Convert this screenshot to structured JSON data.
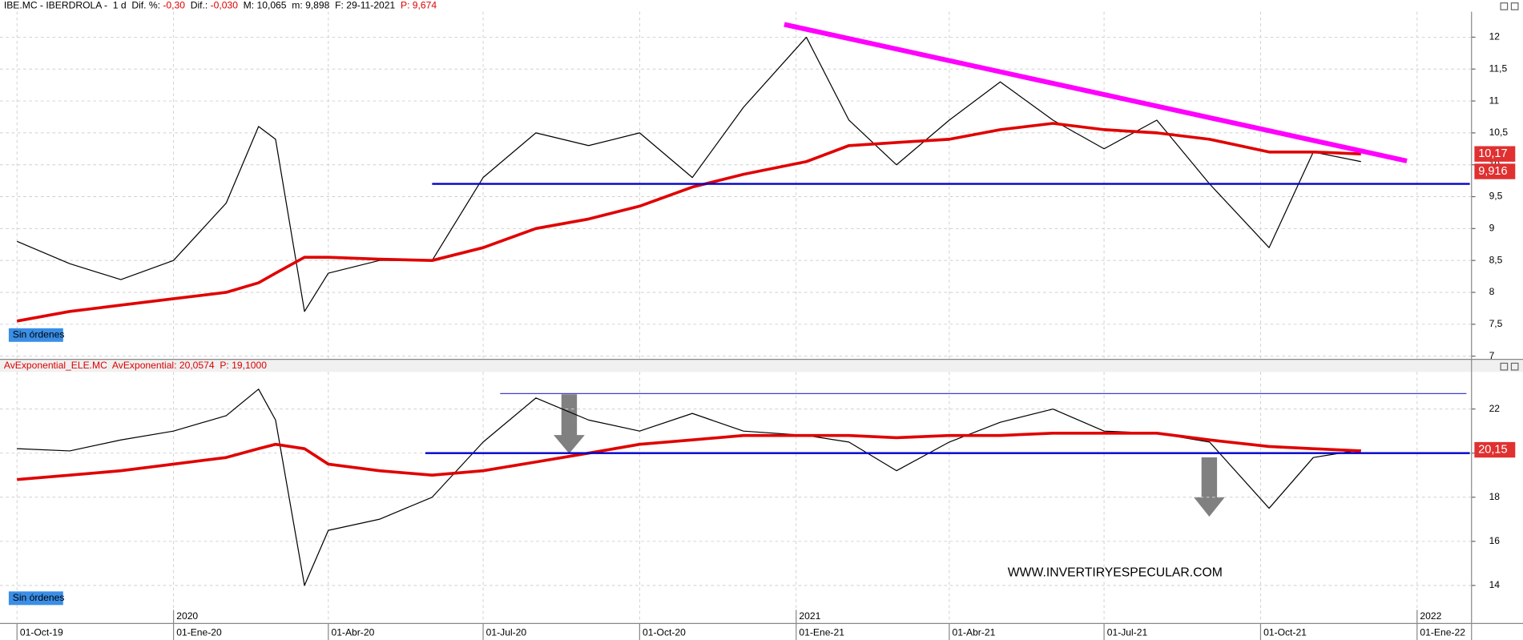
{
  "chart_data": [
    {
      "type": "line",
      "header": [
        {
          "text": "IBE.MC - IBERDROLA -  1 d  Dif. %: ",
          "color": "#000000"
        },
        {
          "text": "-0,30",
          "color": "#e00000"
        },
        {
          "text": "  Dif.: ",
          "color": "#000000"
        },
        {
          "text": "-0,030",
          "color": "#e00000"
        },
        {
          "text": "  M: 10,065  m: 9,898  F: 29-11-2021  ",
          "color": "#000000"
        },
        {
          "text": "P: 9,674",
          "color": "#e00000"
        }
      ],
      "status": "Sin órdenes",
      "x": [
        "2019-10-01",
        "2019-11-01",
        "2019-12-01",
        "2020-01-01",
        "2020-02-01",
        "2020-02-20",
        "2020-03-01",
        "2020-03-18",
        "2020-04-01",
        "2020-05-01",
        "2020-06-01",
        "2020-07-01",
        "2020-08-01",
        "2020-09-01",
        "2020-10-01",
        "2020-11-01",
        "2020-12-01",
        "2021-01-07",
        "2021-02-01",
        "2021-03-01",
        "2021-04-01",
        "2021-05-01",
        "2021-06-01",
        "2021-07-01",
        "2021-08-01",
        "2021-09-01",
        "2021-10-06",
        "2021-11-01",
        "2021-11-29"
      ],
      "series": [
        {
          "color": "#000000",
          "width": 1,
          "values": [
            8.8,
            8.45,
            8.2,
            8.5,
            9.4,
            10.6,
            10.4,
            7.7,
            8.3,
            8.5,
            8.5,
            9.8,
            10.5,
            10.3,
            10.5,
            9.8,
            10.9,
            12.0,
            10.7,
            10.0,
            10.7,
            11.3,
            10.7,
            10.25,
            10.7,
            9.7,
            8.7,
            10.2,
            10.05
          ]
        },
        {
          "color": "#e00000",
          "width": 3,
          "values": [
            7.55,
            7.7,
            7.8,
            7.9,
            8.0,
            8.15,
            8.3,
            8.55,
            8.55,
            8.52,
            8.5,
            8.7,
            9.0,
            9.15,
            9.35,
            9.65,
            9.85,
            10.05,
            10.3,
            10.35,
            10.4,
            10.55,
            10.65,
            10.55,
            10.5,
            10.4,
            10.2,
            10.2,
            10.17
          ]
        }
      ],
      "lines": [
        {
          "x": [
            "2020-06-01",
            "2022-02-01"
          ],
          "y": [
            9.7,
            9.7
          ],
          "color": "#0000cc",
          "width": 2
        },
        {
          "x": [
            "2020-12-25",
            "2021-12-26"
          ],
          "y": [
            12.2,
            10.06
          ],
          "color": "#ff00ff",
          "width": 5
        }
      ],
      "tags": [
        {
          "value": 10.17,
          "label": "10,17"
        },
        {
          "value": 9.916,
          "label": "9,916"
        }
      ],
      "xlim": [
        "2019-09-21",
        "2022-02-02"
      ],
      "ylim": [
        6.95,
        12.4
      ],
      "yticks": [
        7,
        {
          "value": 7.5,
          "label": "7,5"
        },
        8,
        {
          "value": 8.5,
          "label": "8,5"
        },
        9,
        {
          "value": 9.5,
          "label": "9,5"
        },
        10,
        {
          "value": 10.5,
          "label": "10,5"
        },
        11,
        {
          "value": 11.5,
          "label": "11,5"
        },
        12
      ],
      "grid": true
    },
    {
      "type": "line",
      "header": [
        {
          "text": "AvExponential_ELE.MC  AvExponential: 20,0574  P: 19,1000",
          "color": "#e00000"
        }
      ],
      "status": "Sin órdenes",
      "watermark": "WWW.INVERTIRYESPECULAR.COM",
      "x": [
        "2019-10-01",
        "2019-11-01",
        "2019-12-01",
        "2020-01-01",
        "2020-02-01",
        "2020-02-20",
        "2020-03-01",
        "2020-03-18",
        "2020-04-01",
        "2020-05-01",
        "2020-06-01",
        "2020-07-01",
        "2020-08-01",
        "2020-09-01",
        "2020-10-01",
        "2020-11-01",
        "2020-12-01",
        "2021-01-07",
        "2021-02-01",
        "2021-03-01",
        "2021-04-01",
        "2021-05-01",
        "2021-06-01",
        "2021-07-01",
        "2021-08-01",
        "2021-09-01",
        "2021-10-06",
        "2021-11-01",
        "2021-11-29"
      ],
      "series": [
        {
          "color": "#000000",
          "width": 1,
          "values": [
            20.2,
            20.1,
            20.6,
            21.0,
            21.7,
            22.9,
            21.5,
            14.0,
            16.5,
            17.0,
            18.0,
            20.5,
            22.5,
            21.5,
            21.0,
            21.8,
            21.0,
            20.8,
            20.5,
            19.2,
            20.5,
            21.4,
            22.0,
            21.0,
            20.9,
            20.5,
            17.5,
            19.8,
            20.15
          ]
        },
        {
          "color": "#e00000",
          "width": 3,
          "values": [
            18.8,
            19.0,
            19.2,
            19.5,
            19.8,
            20.2,
            20.4,
            20.2,
            19.5,
            19.2,
            19.0,
            19.2,
            19.6,
            20.0,
            20.4,
            20.6,
            20.8,
            20.8,
            20.8,
            20.7,
            20.8,
            20.8,
            20.9,
            20.9,
            20.9,
            20.6,
            20.3,
            20.2,
            20.1
          ]
        }
      ],
      "lines": [
        {
          "x": [
            "2020-05-28",
            "2022-02-01"
          ],
          "y": [
            20,
            20
          ],
          "color": "#0000cc",
          "width": 2
        },
        {
          "x": [
            "2020-07-11",
            "2022-01-30"
          ],
          "y": [
            22.7,
            22.7
          ],
          "color": "#4040d0",
          "width": 1
        }
      ],
      "tags": [
        {
          "value": 20.15,
          "label": "20,15"
        }
      ],
      "xlim": [
        "2019-09-21",
        "2022-02-02"
      ],
      "ylim": [
        12.32,
        23.68
      ],
      "yticks": [
        14,
        16,
        18,
        20,
        22
      ],
      "xticks": [
        {
          "value": "2019-10-01",
          "label": "01-Oct-19"
        },
        {
          "value": "2020-01-01",
          "label": "01-Ene-20"
        },
        {
          "value": "2020-04-01",
          "label": "01-Abr-20"
        },
        {
          "value": "2020-07-01",
          "label": "01-Jul-20"
        },
        {
          "value": "2020-10-01",
          "label": "01-Oct-20"
        },
        {
          "value": "2021-01-01",
          "label": "01-Ene-21"
        },
        {
          "value": "2021-04-01",
          "label": "01-Abr-21"
        },
        {
          "value": "2021-07-01",
          "label": "01-Jul-21"
        },
        {
          "value": "2021-10-01",
          "label": "01-Oct-21"
        },
        {
          "value": "2022-01-01",
          "label": "01-Ene-22"
        }
      ],
      "year_labels": [
        {
          "value": "2020-01-01",
          "label": "2020"
        },
        {
          "value": "2021-01-01",
          "label": "2021"
        },
        {
          "value": "2022-01-01",
          "label": "2022"
        }
      ],
      "grid": true
    }
  ]
}
